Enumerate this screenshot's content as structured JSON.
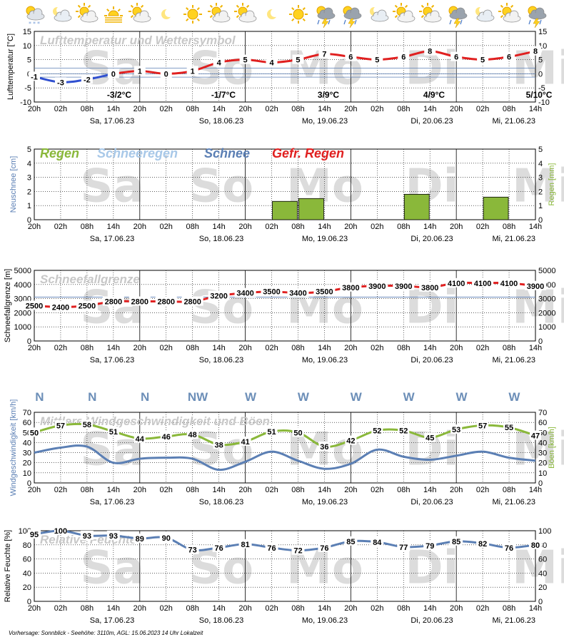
{
  "x_labels": [
    "20h",
    "02h",
    "08h",
    "14h",
    "20h",
    "02h",
    "08h",
    "14h",
    "20h",
    "02h",
    "08h",
    "14h",
    "20h",
    "02h",
    "08h",
    "14h",
    "20h",
    "02h",
    "08h",
    "14h"
  ],
  "days": [
    {
      "label": "Sa, 17.06.23",
      "wm": "Sa"
    },
    {
      "label": "So, 18.06.23",
      "wm": "So"
    },
    {
      "label": "Mo, 19.06.23",
      "wm": "Mo"
    },
    {
      "label": "Di, 20.06.23",
      "wm": "Di"
    },
    {
      "label": "Mi, 21.06.23",
      "wm": "Mi"
    }
  ],
  "weather_icons": [
    "snow-cloud-icon",
    "cloud-moon-icon",
    "sun-cloud-icon",
    "sunrise-icon",
    "sun-cloud-icon",
    "moon-icon",
    "sun-icon",
    "sun-cloud-icon",
    "sun-cloud-icon",
    "moon-icon",
    "sun-icon",
    "thunderstorm-icon",
    "thunderstorm-icon",
    "cloud-moon-icon",
    "sun-cloud-icon",
    "sun-cloud-icon",
    "thunderstorm-icon",
    "cloud-moon-icon",
    "sun-cloud-icon",
    "thunderstorm-icon"
  ],
  "footer": "Vorhersage: Sonnblick - Seehöhe: 3110m, AGL: 15.06.2023 14 Uhr Lokalzeit",
  "colors": {
    "red": "#e02020",
    "blue": "#3050d0",
    "green": "#8ab83a",
    "steel": "#5b7fb4"
  },
  "chart_data": [
    {
      "type": "line",
      "title": "Lufttemperatur und Wettersymbol",
      "ylabel": "Lufttemperatur [°C]",
      "ylim": [
        -10,
        15
      ],
      "yticks": [
        -10,
        -5,
        0,
        5,
        10,
        15
      ],
      "values": [
        -1,
        -3,
        -2,
        0,
        1,
        0,
        1,
        4,
        5,
        4,
        5,
        7,
        6,
        5,
        6,
        8,
        6,
        5,
        6,
        8
      ],
      "minmax": [
        "-3/2°C",
        "-1/7°C",
        "3/9°C",
        "4/9°C",
        "5/10°C"
      ]
    },
    {
      "type": "bar",
      "legend": [
        "Regen",
        "Schneeregen",
        "Schnee",
        "Gefr. Regen"
      ],
      "ylabel_left": "Neuschnee [cm]",
      "ylabel_right": "Regen [mm]",
      "ylim": [
        0,
        5
      ],
      "yticks": [
        0,
        1,
        2,
        3,
        4,
        5
      ],
      "rain": [
        0,
        0,
        0,
        0,
        0,
        0,
        0,
        0,
        0,
        0,
        1.3,
        1.5,
        0,
        0,
        0,
        1.8,
        0,
        0,
        1.6,
        0
      ]
    },
    {
      "type": "line",
      "title": "Schneefallgrenze",
      "ylabel": "Schneefallgrenze [m]",
      "ylim": [
        0,
        5000
      ],
      "yticks": [
        0,
        1000,
        2000,
        3000,
        4000,
        5000
      ],
      "values": [
        2500,
        2400,
        2500,
        2800,
        2800,
        2800,
        2800,
        3200,
        3400,
        3500,
        3400,
        3500,
        3800,
        3900,
        3900,
        3800,
        4100,
        4100,
        4100,
        3900
      ]
    },
    {
      "type": "line",
      "title": "Mittlere Windgeschwindigkeit und Böen",
      "ylabel_left": "Windgeschwindigkeit [km/h]",
      "ylabel_right": "Böen [km/h]",
      "ylim": [
        0,
        70
      ],
      "yticks": [
        0,
        10,
        20,
        30,
        40,
        50,
        60,
        70
      ],
      "directions": [
        "N",
        "N",
        "N",
        "NW",
        "W",
        "W",
        "W",
        "W",
        "W",
        "W"
      ],
      "gusts": [
        50,
        57,
        58,
        51,
        44,
        46,
        48,
        38,
        41,
        51,
        50,
        36,
        42,
        52,
        52,
        45,
        53,
        57,
        55,
        47
      ],
      "speed": [
        30,
        35,
        36,
        20,
        24,
        25,
        24,
        13,
        21,
        31,
        22,
        14,
        19,
        33,
        26,
        23,
        27,
        31,
        25,
        22
      ]
    },
    {
      "type": "line",
      "title": "Relative Feuchte",
      "ylabel": "Relative Feuchte [%]",
      "ylim": [
        0,
        100
      ],
      "yticks": [
        0,
        20,
        40,
        60,
        80,
        100
      ],
      "values": [
        95,
        100,
        93,
        93,
        89,
        90,
        73,
        76,
        81,
        76,
        72,
        76,
        85,
        84,
        77,
        79,
        85,
        82,
        76,
        80
      ]
    }
  ]
}
